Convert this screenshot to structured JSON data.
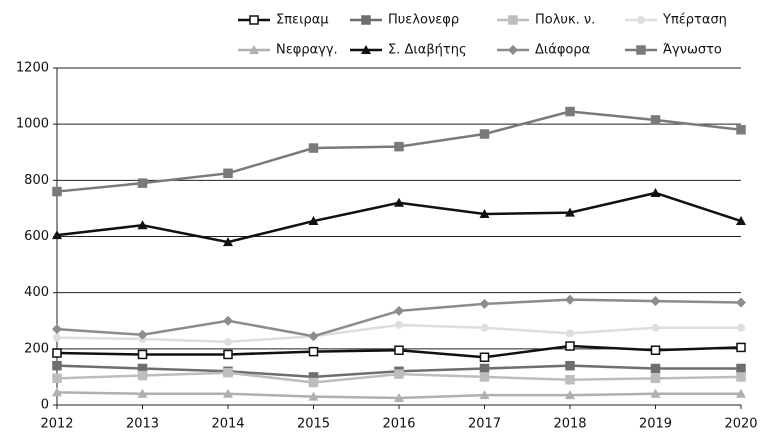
{
  "chart_data": {
    "type": "line",
    "x": [
      2012,
      2013,
      2014,
      2015,
      2016,
      2017,
      2018,
      2019,
      2020
    ],
    "xlim": [
      2012,
      2020
    ],
    "xticks": [
      2012,
      2013,
      2014,
      2015,
      2016,
      2017,
      2018,
      2019,
      2020
    ],
    "ylim": [
      0,
      1200
    ],
    "yticks": [
      0,
      200,
      400,
      600,
      800,
      1000,
      1200
    ],
    "grid": true,
    "legend": "top",
    "series": [
      {
        "name": "Σπειραμ",
        "color": "#111111",
        "marker": "square-open",
        "values": [
          185,
          180,
          180,
          190,
          195,
          170,
          210,
          195,
          205
        ]
      },
      {
        "name": "Πυελονεφρ",
        "color": "#6e6e6e",
        "marker": "square",
        "values": [
          140,
          130,
          120,
          100,
          120,
          130,
          140,
          130,
          130
        ]
      },
      {
        "name": "Πολυκ. ν.",
        "color": "#bdbdbd",
        "marker": "square",
        "values": [
          95,
          105,
          115,
          80,
          110,
          100,
          90,
          95,
          100
        ]
      },
      {
        "name": "Υπέρταση",
        "color": "#dedede",
        "marker": "circle",
        "values": [
          240,
          235,
          225,
          245,
          285,
          275,
          255,
          275,
          275
        ]
      },
      {
        "name": "Νεφραγγ.",
        "color": "#b0b0b0",
        "marker": "triangle",
        "values": [
          45,
          40,
          40,
          30,
          25,
          35,
          35,
          40,
          40
        ]
      },
      {
        "name": "Σ. Διαβήτης",
        "color": "#111111",
        "marker": "triangle",
        "values": [
          605,
          640,
          580,
          655,
          720,
          680,
          685,
          755,
          655
        ]
      },
      {
        "name": "Διάφορα",
        "color": "#8c8c8c",
        "marker": "diamond",
        "values": [
          270,
          250,
          300,
          245,
          335,
          360,
          375,
          370,
          365
        ]
      },
      {
        "name": "Άγνωστο",
        "color": "#7a7a7a",
        "marker": "square",
        "values": [
          760,
          790,
          825,
          915,
          920,
          965,
          1045,
          1015,
          980
        ]
      }
    ]
  }
}
